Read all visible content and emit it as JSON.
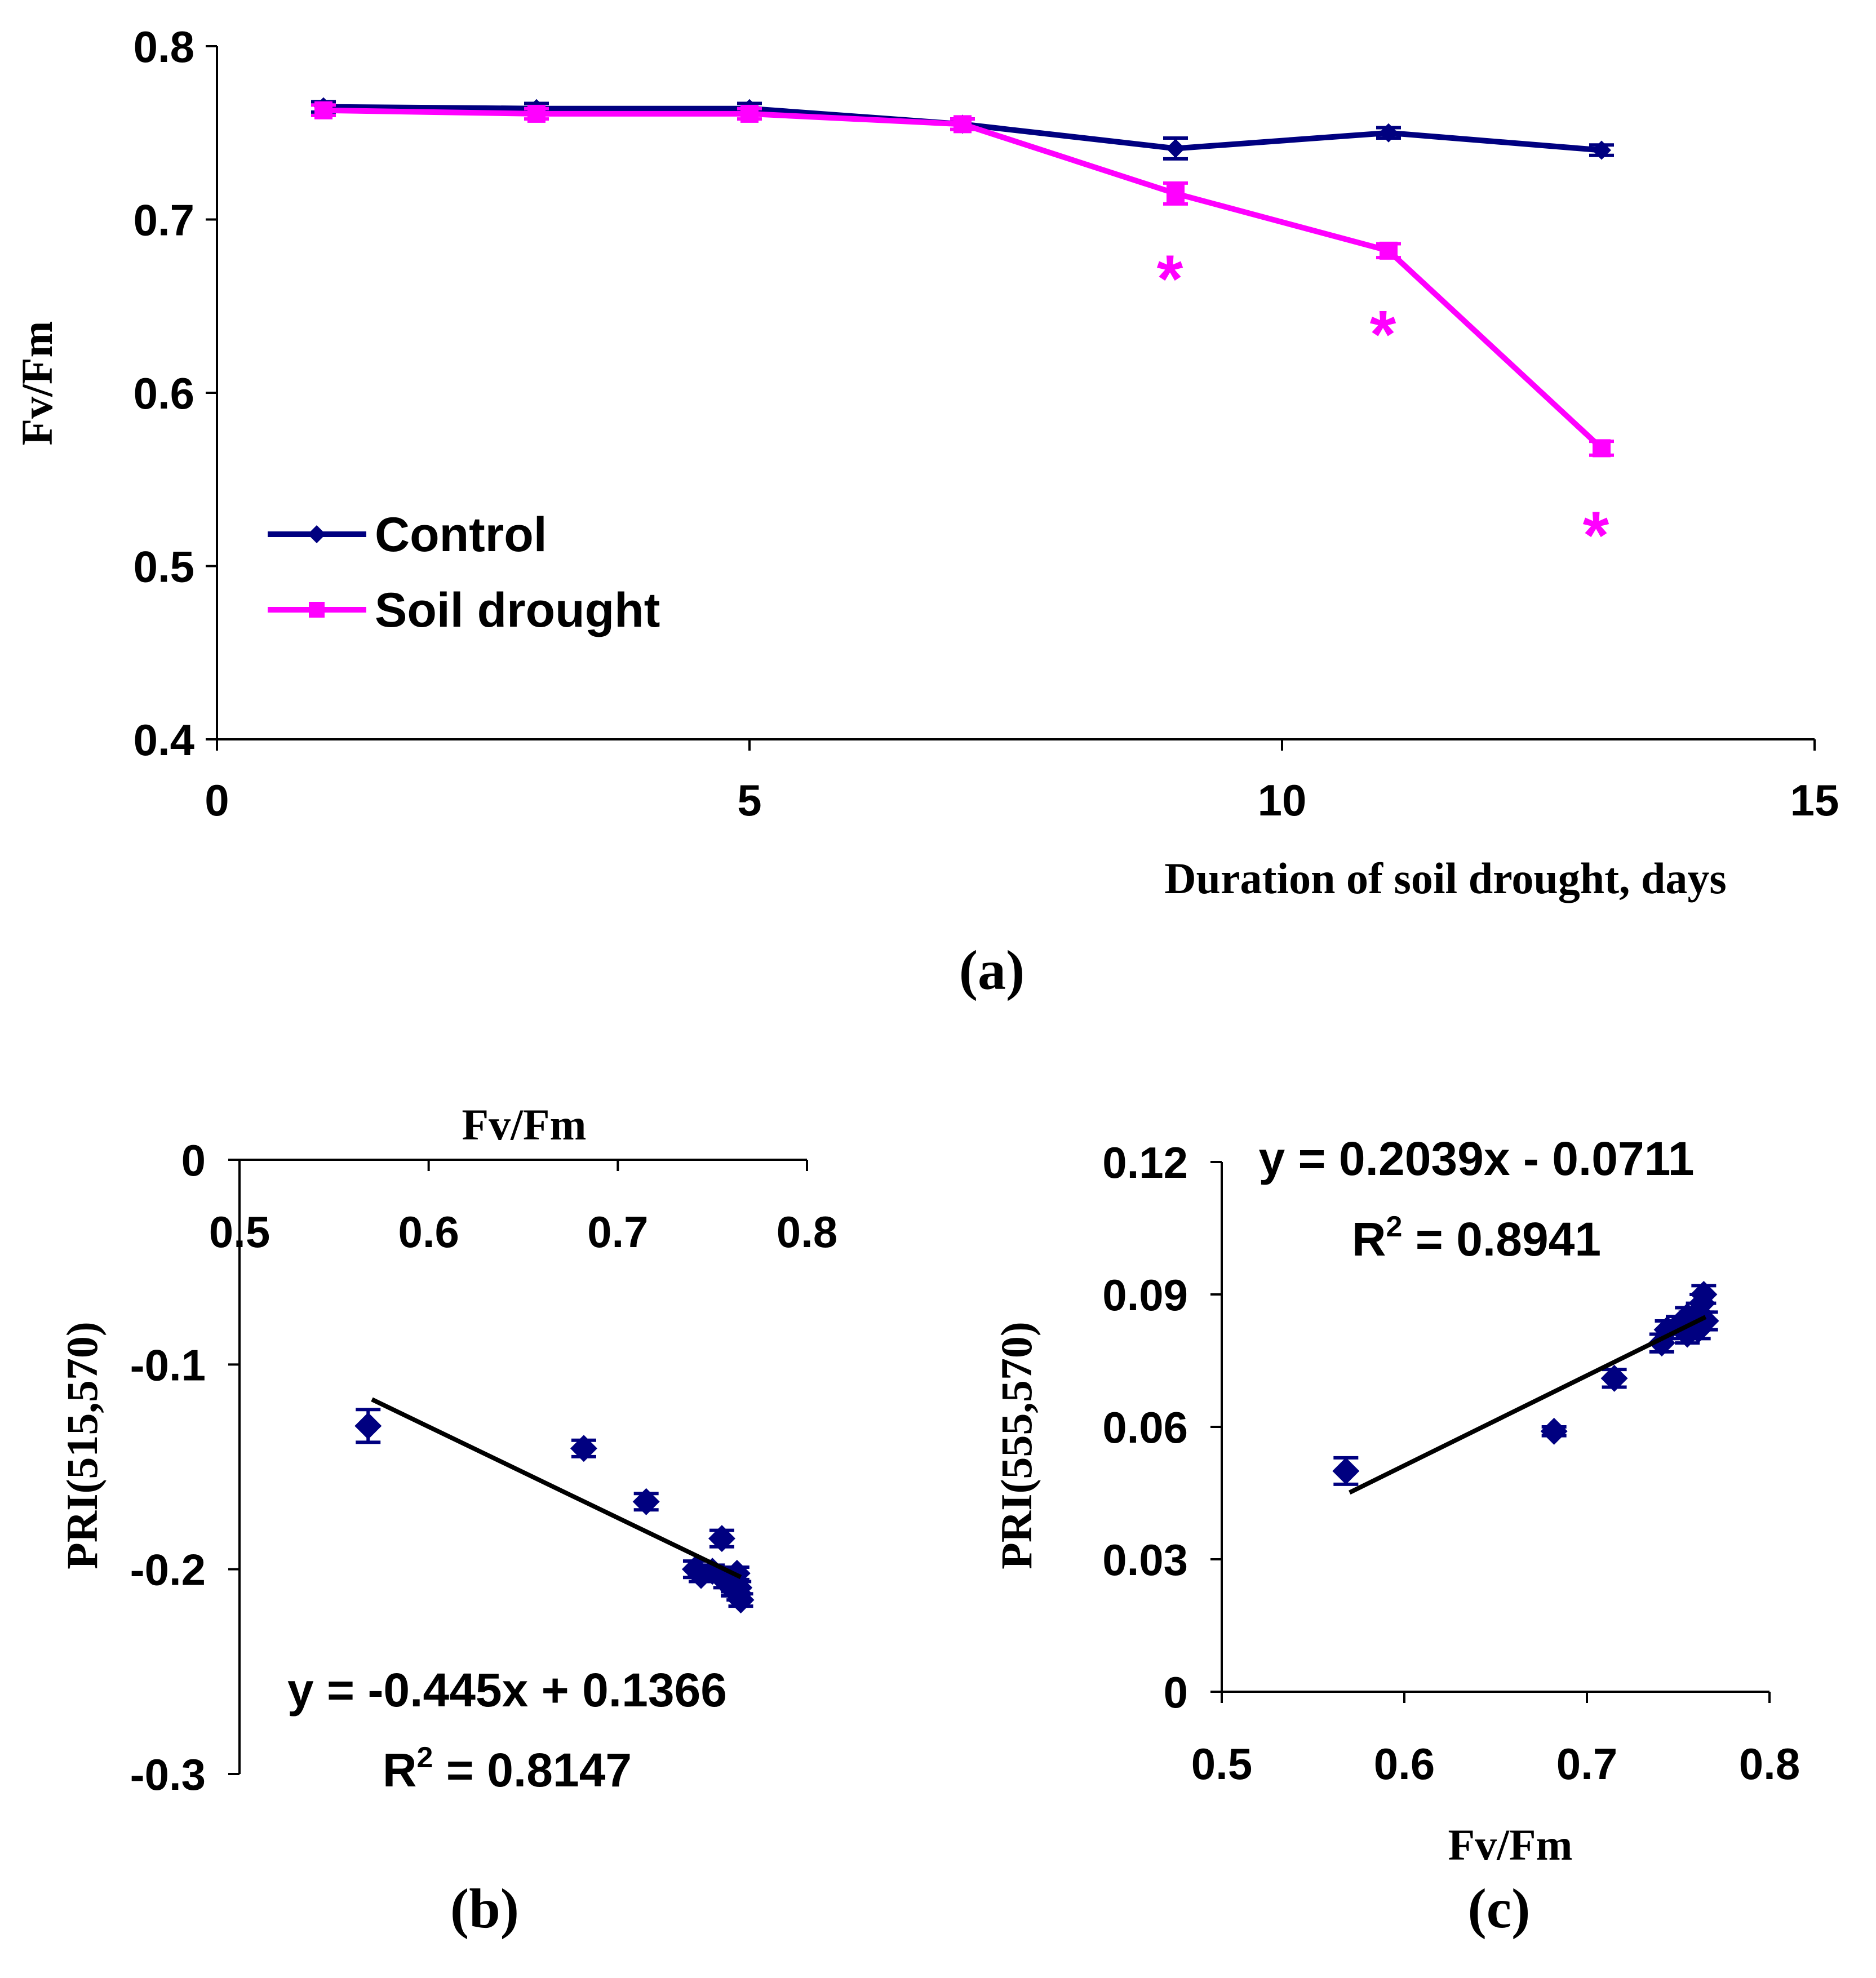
{
  "colors": {
    "control": "#000080",
    "drought": "#FF00FF",
    "scatter": "#000080",
    "fit": "#000000"
  },
  "chart_data": [
    {
      "id": "a",
      "type": "line",
      "panel_label": "(a)",
      "xlabel": "Duration of soil drought, days",
      "ylabel": "Fv/Fm",
      "xlim": [
        0,
        15
      ],
      "ylim": [
        0.4,
        0.8
      ],
      "xticks": [
        "0",
        "5",
        "10",
        "15"
      ],
      "yticks": [
        "0.4",
        "0.5",
        "0.6",
        "0.7",
        "0.8"
      ],
      "series": [
        {
          "name": "Control",
          "marker": "diamond",
          "color": "#000080",
          "x": [
            1,
            3,
            5,
            7,
            9,
            11,
            13
          ],
          "y": [
            0.765,
            0.764,
            0.764,
            0.755,
            0.741,
            0.75,
            0.74
          ],
          "err": [
            0.003,
            0.003,
            0.003,
            0.003,
            0.006,
            0.003,
            0.003
          ]
        },
        {
          "name": "Soil drought",
          "marker": "square",
          "color": "#FF00FF",
          "x": [
            1,
            3,
            5,
            7,
            9,
            11,
            13
          ],
          "y": [
            0.763,
            0.761,
            0.761,
            0.755,
            0.715,
            0.682,
            0.568
          ],
          "err": [
            0.003,
            0.003,
            0.003,
            0.003,
            0.006,
            0.004,
            0.004
          ]
        }
      ],
      "annotations": [
        {
          "text": "*",
          "x": 9,
          "y": 0.68
        },
        {
          "text": "*",
          "x": 11,
          "y": 0.648
        },
        {
          "text": "*",
          "x": 13,
          "y": 0.532
        }
      ],
      "legend": {
        "position": "left",
        "entries": [
          "Control",
          "Soil drought"
        ]
      }
    },
    {
      "id": "b",
      "type": "scatter",
      "panel_label": "(b)",
      "xlabel": "Fv/Fm",
      "ylabel": "PRI(515,570)",
      "xlim": [
        0.5,
        0.8
      ],
      "ylim": [
        -0.3,
        0
      ],
      "xticks": [
        "0.5",
        "0.6",
        "0.7",
        "0.8"
      ],
      "yticks": [
        "0",
        "-0.1",
        "-0.2",
        "-0.3"
      ],
      "points": [
        {
          "x": 0.568,
          "y": -0.13,
          "err": 0.008
        },
        {
          "x": 0.682,
          "y": -0.141,
          "err": 0.004
        },
        {
          "x": 0.715,
          "y": -0.167,
          "err": 0.004
        },
        {
          "x": 0.741,
          "y": -0.2,
          "err": 0.004
        },
        {
          "x": 0.744,
          "y": -0.203,
          "err": 0.003
        },
        {
          "x": 0.75,
          "y": -0.201,
          "err": 0.003
        },
        {
          "x": 0.755,
          "y": -0.185,
          "err": 0.004
        },
        {
          "x": 0.757,
          "y": -0.206,
          "err": 0.003
        },
        {
          "x": 0.761,
          "y": -0.208,
          "err": 0.003
        },
        {
          "x": 0.763,
          "y": -0.202,
          "err": 0.003
        },
        {
          "x": 0.764,
          "y": -0.212,
          "err": 0.003
        },
        {
          "x": 0.765,
          "y": -0.215,
          "err": 0.003
        },
        {
          "x": 0.761,
          "y": -0.21,
          "err": 0.003
        },
        {
          "x": 0.764,
          "y": -0.209,
          "err": 0.003
        }
      ],
      "trendline": {
        "slope": -0.445,
        "intercept": 0.1366,
        "x_range": [
          0.57,
          0.765
        ]
      },
      "equation": "y = -0.445x + 0.1366",
      "r2_prefix": "R",
      "r2_sup": "2",
      "r2_value": " = 0.8147"
    },
    {
      "id": "c",
      "type": "scatter",
      "panel_label": "(c)",
      "xlabel": "Fv/Fm",
      "ylabel": "PRI(555,570)",
      "xlim": [
        0.5,
        0.8
      ],
      "ylim": [
        0,
        0.12
      ],
      "xticks": [
        "0.5",
        "0.6",
        "0.7",
        "0.8"
      ],
      "yticks": [
        "0",
        "0.03",
        "0.06",
        "0.09",
        "0.12"
      ],
      "points": [
        {
          "x": 0.568,
          "y": 0.05,
          "err": 0.003
        },
        {
          "x": 0.682,
          "y": 0.059,
          "err": 0.001
        },
        {
          "x": 0.715,
          "y": 0.071,
          "err": 0.002
        },
        {
          "x": 0.741,
          "y": 0.079,
          "err": 0.002
        },
        {
          "x": 0.744,
          "y": 0.082,
          "err": 0.002
        },
        {
          "x": 0.75,
          "y": 0.083,
          "err": 0.002
        },
        {
          "x": 0.755,
          "y": 0.081,
          "err": 0.002
        },
        {
          "x": 0.757,
          "y": 0.084,
          "err": 0.002
        },
        {
          "x": 0.761,
          "y": 0.086,
          "err": 0.002
        },
        {
          "x": 0.763,
          "y": 0.088,
          "err": 0.002
        },
        {
          "x": 0.764,
          "y": 0.09,
          "err": 0.002
        },
        {
          "x": 0.765,
          "y": 0.084,
          "err": 0.002
        },
        {
          "x": 0.761,
          "y": 0.082,
          "err": 0.002
        },
        {
          "x": 0.755,
          "y": 0.085,
          "err": 0.002
        }
      ],
      "trendline": {
        "slope": 0.2039,
        "intercept": -0.0711,
        "x_range": [
          0.57,
          0.765
        ]
      },
      "equation": "y = 0.2039x - 0.0711",
      "r2_prefix": "R",
      "r2_sup": "2",
      "r2_value": " = 0.8941"
    }
  ]
}
